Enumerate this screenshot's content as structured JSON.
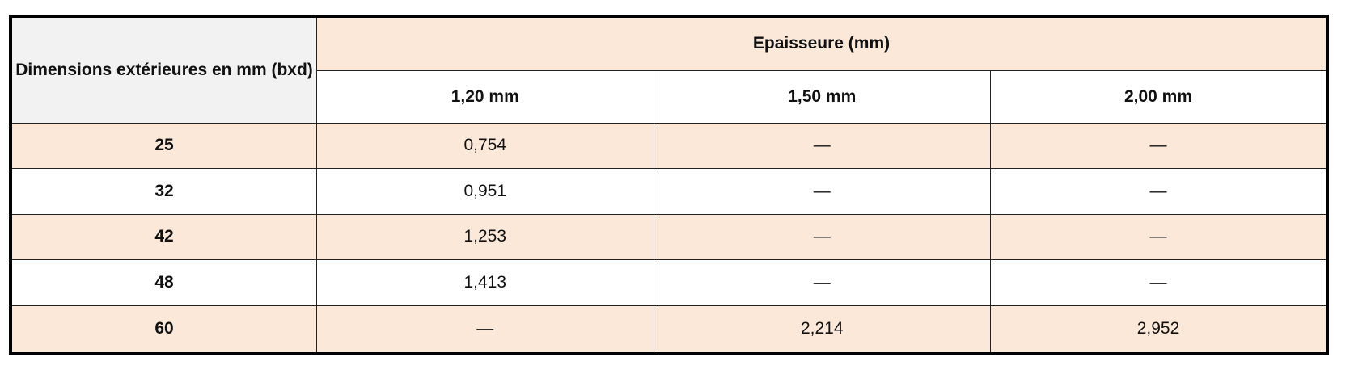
{
  "table": {
    "corner_header": "Dimensions extérieures en mm (bxd)",
    "group_header": "Epaisseure (mm)",
    "columns": [
      "1,20 mm",
      "1,50 mm",
      "2,00 mm"
    ],
    "rows": [
      {
        "dim": "25",
        "values": [
          "0,754",
          "—",
          "—"
        ]
      },
      {
        "dim": "32",
        "values": [
          "0,951",
          "—",
          "—"
        ]
      },
      {
        "dim": "42",
        "values": [
          "1,253",
          "—",
          "—"
        ]
      },
      {
        "dim": "48",
        "values": [
          "1,413",
          "—",
          "—"
        ]
      },
      {
        "dim": "60",
        "values": [
          "—",
          "2,214",
          "2,952"
        ]
      }
    ],
    "colors": {
      "band": "#fce8d9",
      "corner": "#f2f2f2"
    }
  }
}
